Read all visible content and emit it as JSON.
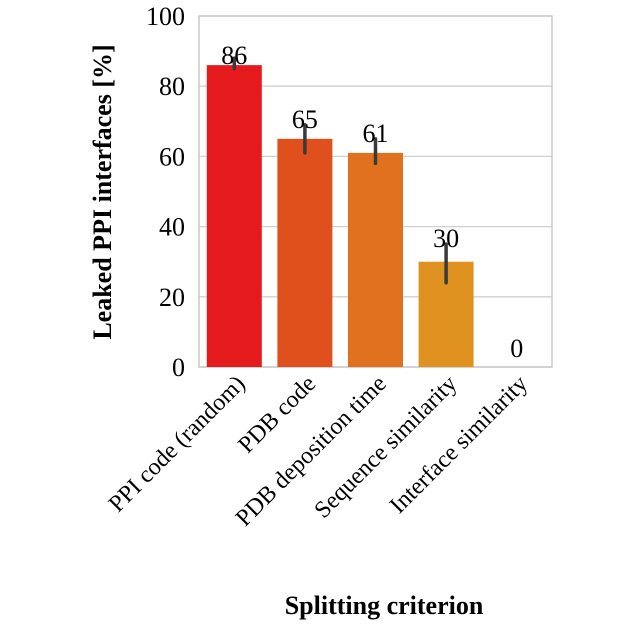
{
  "chart_data": {
    "type": "bar",
    "title": "",
    "xlabel": "Splitting criterion",
    "ylabel": "Leaked PPI interfaces [%]",
    "categories": [
      "PPI code (random)",
      "PDB code",
      "PDB deposition time",
      "Sequence similarity",
      "Interface similarity"
    ],
    "values": [
      86,
      65,
      61,
      30,
      0
    ],
    "data_labels": [
      "86",
      "65",
      "61",
      "30",
      "0"
    ],
    "error_bars": [
      [
        85,
        88
      ],
      [
        61,
        69
      ],
      [
        58,
        65
      ],
      [
        24,
        35
      ],
      [
        0,
        0
      ]
    ],
    "colors": [
      "#e41a1c",
      "#e0501d",
      "#e0711f",
      "#e09220",
      "#e0b020"
    ],
    "ylim": [
      0,
      100
    ],
    "yticks": [
      0,
      20,
      40,
      60,
      80,
      100
    ],
    "ytick_labels": [
      "0",
      "20",
      "40",
      "60",
      "80",
      "100"
    ],
    "grid": true
  }
}
